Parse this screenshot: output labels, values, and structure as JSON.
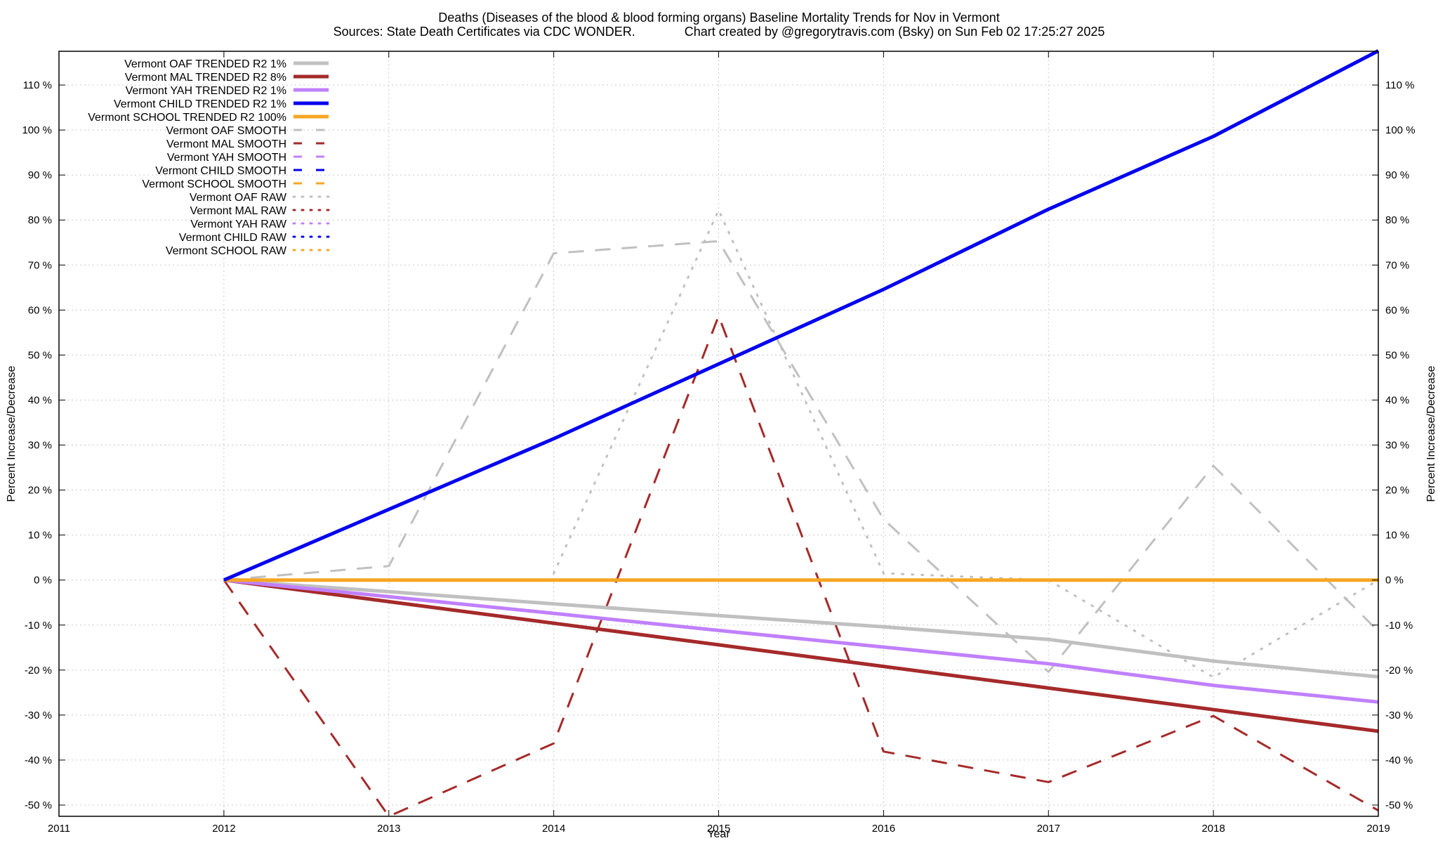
{
  "chart_data": {
    "type": "line",
    "title": "Deaths (Diseases of the blood & blood forming organs)  Baseline Mortality Trends for Nov in Vermont",
    "subtitle": "Sources: State Death Certificates via CDC WONDER.              Chart created by @gregorytravis.com (Bsky) on Sun Feb 02 17:25:27 2025",
    "xlabel": "Year",
    "ylabel": "Percent Increase/Decrease",
    "y2label": "Percent Increase/Decrease",
    "xlim": [
      2011,
      2019
    ],
    "ylim": [
      -52.5,
      117.5
    ],
    "x_ticks": [
      "2011",
      "2012",
      "2013",
      "2014",
      "2015",
      "2016",
      "2017",
      "2018",
      "2019"
    ],
    "y_ticks": [
      {
        "v": -50,
        "l": "-50 %"
      },
      {
        "v": -40,
        "l": "-40 %"
      },
      {
        "v": -30,
        "l": "-30 %"
      },
      {
        "v": -20,
        "l": "-20 %"
      },
      {
        "v": -10,
        "l": "-10 %"
      },
      {
        "v": 0,
        "l": "0 %"
      },
      {
        "v": 10,
        "l": "10 %"
      },
      {
        "v": 20,
        "l": "20 %"
      },
      {
        "v": 30,
        "l": "30 %"
      },
      {
        "v": 40,
        "l": "40 %"
      },
      {
        "v": 50,
        "l": "50 %"
      },
      {
        "v": 60,
        "l": "60 %"
      },
      {
        "v": 70,
        "l": "70 %"
      },
      {
        "v": 80,
        "l": "80 %"
      },
      {
        "v": 90,
        "l": "90 %"
      },
      {
        "v": 100,
        "l": "100 %"
      },
      {
        "v": 110,
        "l": "110 %"
      }
    ],
    "grid": true,
    "legend_position": "top-left",
    "series": [
      {
        "name": "Vermont OAF TRENDED R2   1%",
        "color": "#c0c0c0",
        "style": "solid",
        "width": 5,
        "x": [
          2012,
          2013,
          2014,
          2015,
          2016,
          2017,
          2018,
          2019
        ],
        "y": [
          0,
          -2.6,
          -5.3,
          -7.9,
          -10.4,
          -13.2,
          -18.0,
          -21.5
        ]
      },
      {
        "name": "Vermont MAL TRENDED R2   8%",
        "color": "#a52a2a",
        "style": "solid",
        "width": 5,
        "x": [
          2012,
          2019
        ],
        "y": [
          0,
          -33.6
        ]
      },
      {
        "name": "Vermont YAH TRENDED R2   1%",
        "color": "#c080ff",
        "style": "solid",
        "width": 5,
        "x": [
          2012,
          2013,
          2014,
          2015,
          2016,
          2017,
          2018,
          2019
        ],
        "y": [
          0,
          -3.7,
          -7.4,
          -11.2,
          -14.9,
          -18.6,
          -23.4,
          -27.1
        ]
      },
      {
        "name": "Vermont CHILD TRENDED R2   1%",
        "color": "#0000ee",
        "style": "solid",
        "width": 5,
        "x": [
          2012,
          2013,
          2014,
          2015,
          2016,
          2017,
          2018,
          2019
        ],
        "y": [
          0,
          15.7,
          31.4,
          48.0,
          64.6,
          82.4,
          98.6,
          117.6
        ]
      },
      {
        "name": "Vermont SCHOOL TRENDED R2 100%",
        "color": "#f5a623",
        "style": "solid",
        "width": 5,
        "x": [
          2012,
          2019
        ],
        "y": [
          0,
          0
        ]
      },
      {
        "name": "Vermont OAF SMOOTH",
        "color": "#c0c0c0",
        "style": "dashed",
        "width": 3,
        "x": [
          2012,
          2013,
          2014,
          2015,
          2016,
          2017,
          2018,
          2019
        ],
        "y": [
          0,
          3.1,
          72.6,
          75.3,
          13.5,
          -20.4,
          25.4,
          -11.4
        ]
      },
      {
        "name": "Vermont MAL SMOOTH",
        "color": "#a52a2a",
        "style": "dashed",
        "width": 3,
        "x": [
          2012,
          2013,
          2014,
          2015,
          2016,
          2017,
          2018,
          2019
        ],
        "y": [
          0,
          -52.5,
          -36.3,
          58.7,
          -38.1,
          -44.9,
          -30.2,
          -51.2
        ]
      },
      {
        "name": "Vermont YAH SMOOTH",
        "color": "#c080ff",
        "style": "dashed",
        "width": 3,
        "x": [],
        "y": []
      },
      {
        "name": "Vermont CHILD SMOOTH",
        "color": "#0000ee",
        "style": "dashed",
        "width": 3,
        "x": [],
        "y": []
      },
      {
        "name": "Vermont SCHOOL SMOOTH",
        "color": "#f5a623",
        "style": "dashed",
        "width": 3,
        "x": [],
        "y": []
      },
      {
        "name": "Vermont OAF RAW",
        "color": "#c0c0c0",
        "style": "dotted",
        "width": 3,
        "x": [
          2014,
          2015,
          2016,
          2017,
          2018,
          2019
        ],
        "y": [
          1.5,
          82.2,
          1.5,
          0,
          -21.6,
          0
        ]
      },
      {
        "name": "Vermont MAL RAW",
        "color": "#a52a2a",
        "style": "dotted",
        "width": 3,
        "x": [],
        "y": []
      },
      {
        "name": "Vermont YAH RAW",
        "color": "#c080ff",
        "style": "dotted",
        "width": 3,
        "x": [],
        "y": []
      },
      {
        "name": "Vermont CHILD RAW",
        "color": "#0000ee",
        "style": "dotted",
        "width": 3,
        "x": [],
        "y": []
      },
      {
        "name": "Vermont SCHOOL RAW",
        "color": "#f5a623",
        "style": "dotted",
        "width": 3,
        "x": [],
        "y": []
      }
    ]
  }
}
